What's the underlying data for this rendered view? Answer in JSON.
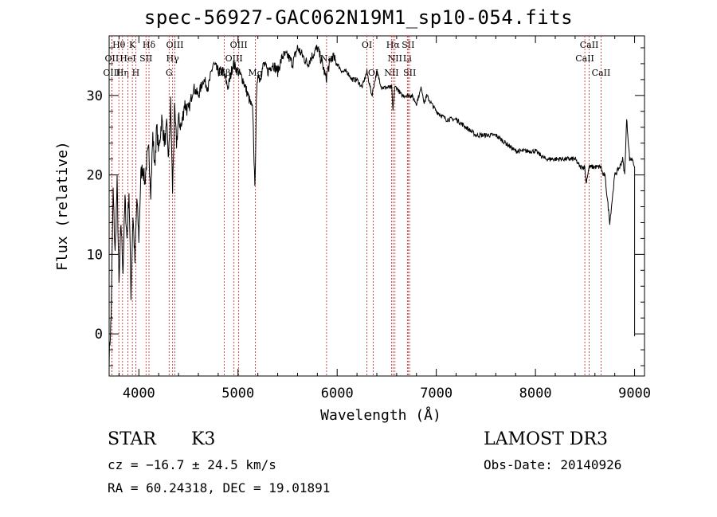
{
  "chart_data": {
    "type": "line",
    "title": "spec-56927-GAC062N19M1_sp10-054.fits",
    "xlabel": "Wavelength (Å)",
    "ylabel": "Flux (relative)",
    "xlim": [
      3700,
      9100
    ],
    "ylim": [
      -5.3,
      37.5
    ],
    "xticks": [
      4000,
      5000,
      6000,
      7000,
      8000,
      9000
    ],
    "yticks": [
      0,
      10,
      20,
      30
    ],
    "series": [
      {
        "name": "spectrum",
        "x": [
          3700,
          3720,
          3740,
          3760,
          3780,
          3800,
          3820,
          3840,
          3860,
          3880,
          3900,
          3920,
          3940,
          3960,
          3980,
          4000,
          4020,
          4040,
          4060,
          4080,
          4100,
          4120,
          4140,
          4160,
          4180,
          4200,
          4230,
          4260,
          4280,
          4300,
          4320,
          4340,
          4360,
          4380,
          4400,
          4430,
          4460,
          4500,
          4550,
          4600,
          4650,
          4700,
          4750,
          4800,
          4850,
          4900,
          4950,
          5000,
          5050,
          5100,
          5150,
          5170,
          5185,
          5200,
          5220,
          5260,
          5300,
          5350,
          5400,
          5450,
          5500,
          5550,
          5600,
          5650,
          5700,
          5750,
          5800,
          5850,
          5890,
          5900,
          5950,
          6000,
          6050,
          6100,
          6150,
          6200,
          6250,
          6300,
          6350,
          6400,
          6450,
          6500,
          6550,
          6563,
          6580,
          6600,
          6650,
          6700,
          6750,
          6800,
          6850,
          6880,
          6900,
          6950,
          7000,
          7100,
          7200,
          7300,
          7400,
          7500,
          7600,
          7700,
          7800,
          7900,
          8000,
          8100,
          8200,
          8300,
          8400,
          8450,
          8498,
          8510,
          8542,
          8560,
          8600,
          8620,
          8662,
          8680,
          8700,
          8750,
          8800,
          8850,
          8880,
          8900,
          8920,
          8950,
          8980,
          9000
        ],
        "y": [
          -3,
          2,
          18,
          10,
          19,
          6,
          14,
          8,
          17,
          12,
          18,
          5,
          15,
          9,
          17,
          12,
          20,
          21,
          19,
          22,
          23,
          18,
          25,
          21,
          26,
          23,
          27,
          24,
          26,
          22,
          29,
          18,
          28,
          24,
          27,
          26,
          29,
          28,
          31,
          30,
          32,
          31,
          34,
          33,
          33,
          31,
          34,
          33,
          32,
          30,
          28,
          18,
          29,
          33,
          32,
          34,
          33,
          34,
          33,
          35,
          35,
          34,
          36,
          35,
          34,
          35,
          36,
          34,
          32,
          33,
          35,
          34,
          33,
          33,
          32,
          32,
          31,
          33,
          30,
          33,
          31,
          31,
          31,
          28,
          31,
          31,
          30,
          30,
          30,
          29,
          31,
          29,
          30,
          29,
          28,
          27,
          27,
          26,
          25,
          25,
          25,
          24,
          23,
          23,
          23,
          22,
          22,
          22,
          22,
          21,
          21,
          19,
          21,
          21,
          21,
          21,
          21,
          20,
          20,
          14,
          20,
          21,
          22,
          20,
          27,
          22,
          22,
          21
        ]
      }
    ],
    "lines": [
      {
        "name": "Hθ",
        "wave": 3798,
        "row": 1
      },
      {
        "name": "OII",
        "wave": 3727,
        "row": 2
      },
      {
        "name": "OIII",
        "wave": 3727,
        "row": 3
      },
      {
        "name": "Hη",
        "wave": 3835,
        "row": 3
      },
      {
        "name": "HeI",
        "wave": 3889,
        "row": 2
      },
      {
        "name": "K",
        "wave": 3934,
        "row": 1
      },
      {
        "name": "H",
        "wave": 3969,
        "row": 3
      },
      {
        "name": "Hδ",
        "wave": 4102,
        "row": 1
      },
      {
        "name": "SII",
        "wave": 4072,
        "row": 2
      },
      {
        "name": "OIII",
        "wave": 4363,
        "row": 1
      },
      {
        "name": "Hγ",
        "wave": 4340,
        "row": 2
      },
      {
        "name": "G",
        "wave": 4305,
        "row": 3
      },
      {
        "name": "OIII",
        "wave": 5007,
        "row": 1
      },
      {
        "name": "OIII",
        "wave": 4959,
        "row": 2
      },
      {
        "name": "Hβ",
        "wave": 4861,
        "row": 3
      },
      {
        "name": "Mg",
        "wave": 5175,
        "row": 3
      },
      {
        "name": "Na",
        "wave": 5893,
        "row": 2
      },
      {
        "name": "OI",
        "wave": 6300,
        "row": 1
      },
      {
        "name": "OI",
        "wave": 6364,
        "row": 3
      },
      {
        "name": "Hα",
        "wave": 6563,
        "row": 1
      },
      {
        "name": "NII",
        "wave": 6583,
        "row": 2
      },
      {
        "name": "NII",
        "wave": 6548,
        "row": 3
      },
      {
        "name": "SII",
        "wave": 6716,
        "row": 1
      },
      {
        "name": "Li",
        "wave": 6708,
        "row": 2
      },
      {
        "name": "SII",
        "wave": 6731,
        "row": 3
      },
      {
        "name": "CaII",
        "wave": 8542,
        "row": 1
      },
      {
        "name": "CaII",
        "wave": 8498,
        "row": 2
      },
      {
        "name": "CaII",
        "wave": 8662,
        "row": 3
      }
    ]
  },
  "info": {
    "class": "STAR",
    "subclass": "K3",
    "survey": "LAMOST DR3",
    "cz": "cz = −16.7 ± 24.5 km/s",
    "obs_date": "Obs-Date: 20140926",
    "radec": "RA =  60.24318, DEC =  19.01891"
  }
}
